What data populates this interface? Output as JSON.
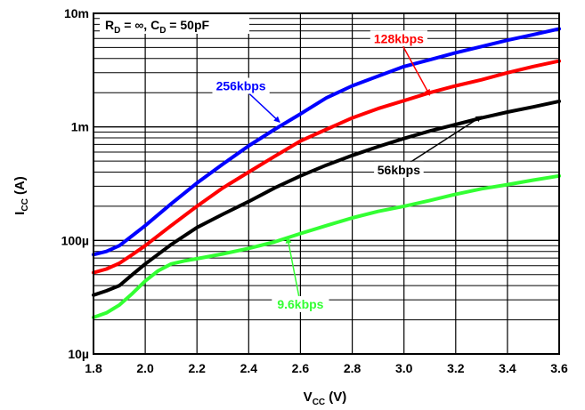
{
  "chart_data": {
    "type": "line",
    "title": "",
    "annotation": {
      "parts": [
        "R",
        "D",
        " = ∞, C",
        "D",
        " = 50pF"
      ]
    },
    "xlabel": {
      "main": "V",
      "sub": "CC",
      "rest": " (V)"
    },
    "ylabel": {
      "main": "I",
      "sub": "CC",
      "rest": " (A)"
    },
    "x_scale": "linear",
    "y_scale": "log",
    "xlim": [
      1.8,
      3.6
    ],
    "ylim": [
      1e-05,
      0.01
    ],
    "grid": true,
    "x_ticks": [
      1.8,
      2.0,
      2.2,
      2.4,
      2.6,
      2.8,
      3.0,
      3.2,
      3.4,
      3.6
    ],
    "x_tick_labels": [
      "1.8",
      "2.0",
      "2.2",
      "2.4",
      "2.6",
      "2.8",
      "3.0",
      "3.2",
      "3.4",
      "3.6"
    ],
    "y_ticks": [
      1e-05,
      0.0001,
      0.001,
      0.01
    ],
    "y_tick_labels": [
      "10µ",
      "100µ",
      "1m",
      "10m"
    ],
    "series": [
      {
        "name": "256kbps",
        "color": "#0000ff",
        "x": [
          1.8,
          1.85,
          1.9,
          1.95,
          2.0,
          2.1,
          2.2,
          2.3,
          2.4,
          2.5,
          2.6,
          2.7,
          2.8,
          2.9,
          3.0,
          3.1,
          3.2,
          3.3,
          3.4,
          3.5,
          3.6
        ],
        "y": [
          7.5e-05,
          8e-05,
          9e-05,
          0.00011,
          0.000135,
          0.00021,
          0.00032,
          0.00047,
          0.00068,
          0.00095,
          0.0013,
          0.0018,
          0.0023,
          0.0028,
          0.0034,
          0.0039,
          0.0045,
          0.0051,
          0.0058,
          0.0065,
          0.0073
        ]
      },
      {
        "name": "128kbps",
        "color": "#ff0000",
        "x": [
          1.8,
          1.85,
          1.9,
          1.95,
          2.0,
          2.1,
          2.2,
          2.3,
          2.4,
          2.5,
          2.6,
          2.7,
          2.8,
          2.9,
          3.0,
          3.1,
          3.2,
          3.3,
          3.4,
          3.5,
          3.6
        ],
        "y": [
          5.2e-05,
          5.6e-05,
          6.3e-05,
          7.5e-05,
          9e-05,
          0.000135,
          0.0002,
          0.00029,
          0.0004,
          0.00055,
          0.00075,
          0.00095,
          0.0012,
          0.00145,
          0.0017,
          0.002,
          0.0023,
          0.0026,
          0.003,
          0.0034,
          0.0038
        ]
      },
      {
        "name": "56kbps",
        "color": "#000000",
        "x": [
          1.8,
          1.85,
          1.9,
          1.95,
          2.0,
          2.1,
          2.2,
          2.3,
          2.4,
          2.5,
          2.6,
          2.7,
          2.8,
          2.9,
          3.0,
          3.1,
          3.2,
          3.3,
          3.4,
          3.5,
          3.6
        ],
        "y": [
          3.3e-05,
          3.6e-05,
          4e-05,
          5e-05,
          6.2e-05,
          9.2e-05,
          0.00013,
          0.00017,
          0.00022,
          0.00029,
          0.00037,
          0.00046,
          0.00056,
          0.00067,
          0.00079,
          0.00092,
          0.00105,
          0.0012,
          0.00135,
          0.0015,
          0.00168
        ]
      },
      {
        "name": "9.6kbps",
        "color": "#33ff33",
        "x": [
          1.8,
          1.85,
          1.9,
          1.95,
          2.0,
          2.05,
          2.1,
          2.15,
          2.2,
          2.3,
          2.4,
          2.5,
          2.6,
          2.7,
          2.8,
          2.9,
          3.0,
          3.1,
          3.2,
          3.3,
          3.4,
          3.5,
          3.6
        ],
        "y": [
          2.1e-05,
          2.3e-05,
          2.7e-05,
          3.4e-05,
          4.4e-05,
          5.4e-05,
          6.2e-05,
          6.6e-05,
          6.9e-05,
          7.6e-05,
          8.5e-05,
          9.7e-05,
          0.000115,
          0.000135,
          0.000158,
          0.00018,
          0.0002,
          0.000225,
          0.000255,
          0.000285,
          0.00031,
          0.00034,
          0.00037
        ]
      }
    ],
    "labels": [
      {
        "series": "256kbps",
        "text": "256kbps",
        "color": "#0000ff",
        "at": [
          2.37,
          0.0023
        ],
        "arrow_to": [
          2.52,
          0.0011
        ]
      },
      {
        "series": "128kbps",
        "text": "128kbps",
        "color": "#ff0000",
        "at": [
          2.98,
          0.006
        ],
        "arrow_to": [
          3.1,
          0.0019
        ]
      },
      {
        "series": "56kbps",
        "text": "56kbps",
        "color": "#000000",
        "at": [
          2.98,
          0.00042
        ],
        "arrow_to": [
          3.3,
          0.00124
        ]
      },
      {
        "series": "9.6kbps",
        "text": "9.6kbps",
        "color": "#33ff33",
        "at": [
          2.6,
          2.75e-05
        ],
        "arrow_to": [
          2.55,
          0.000106
        ]
      }
    ]
  }
}
